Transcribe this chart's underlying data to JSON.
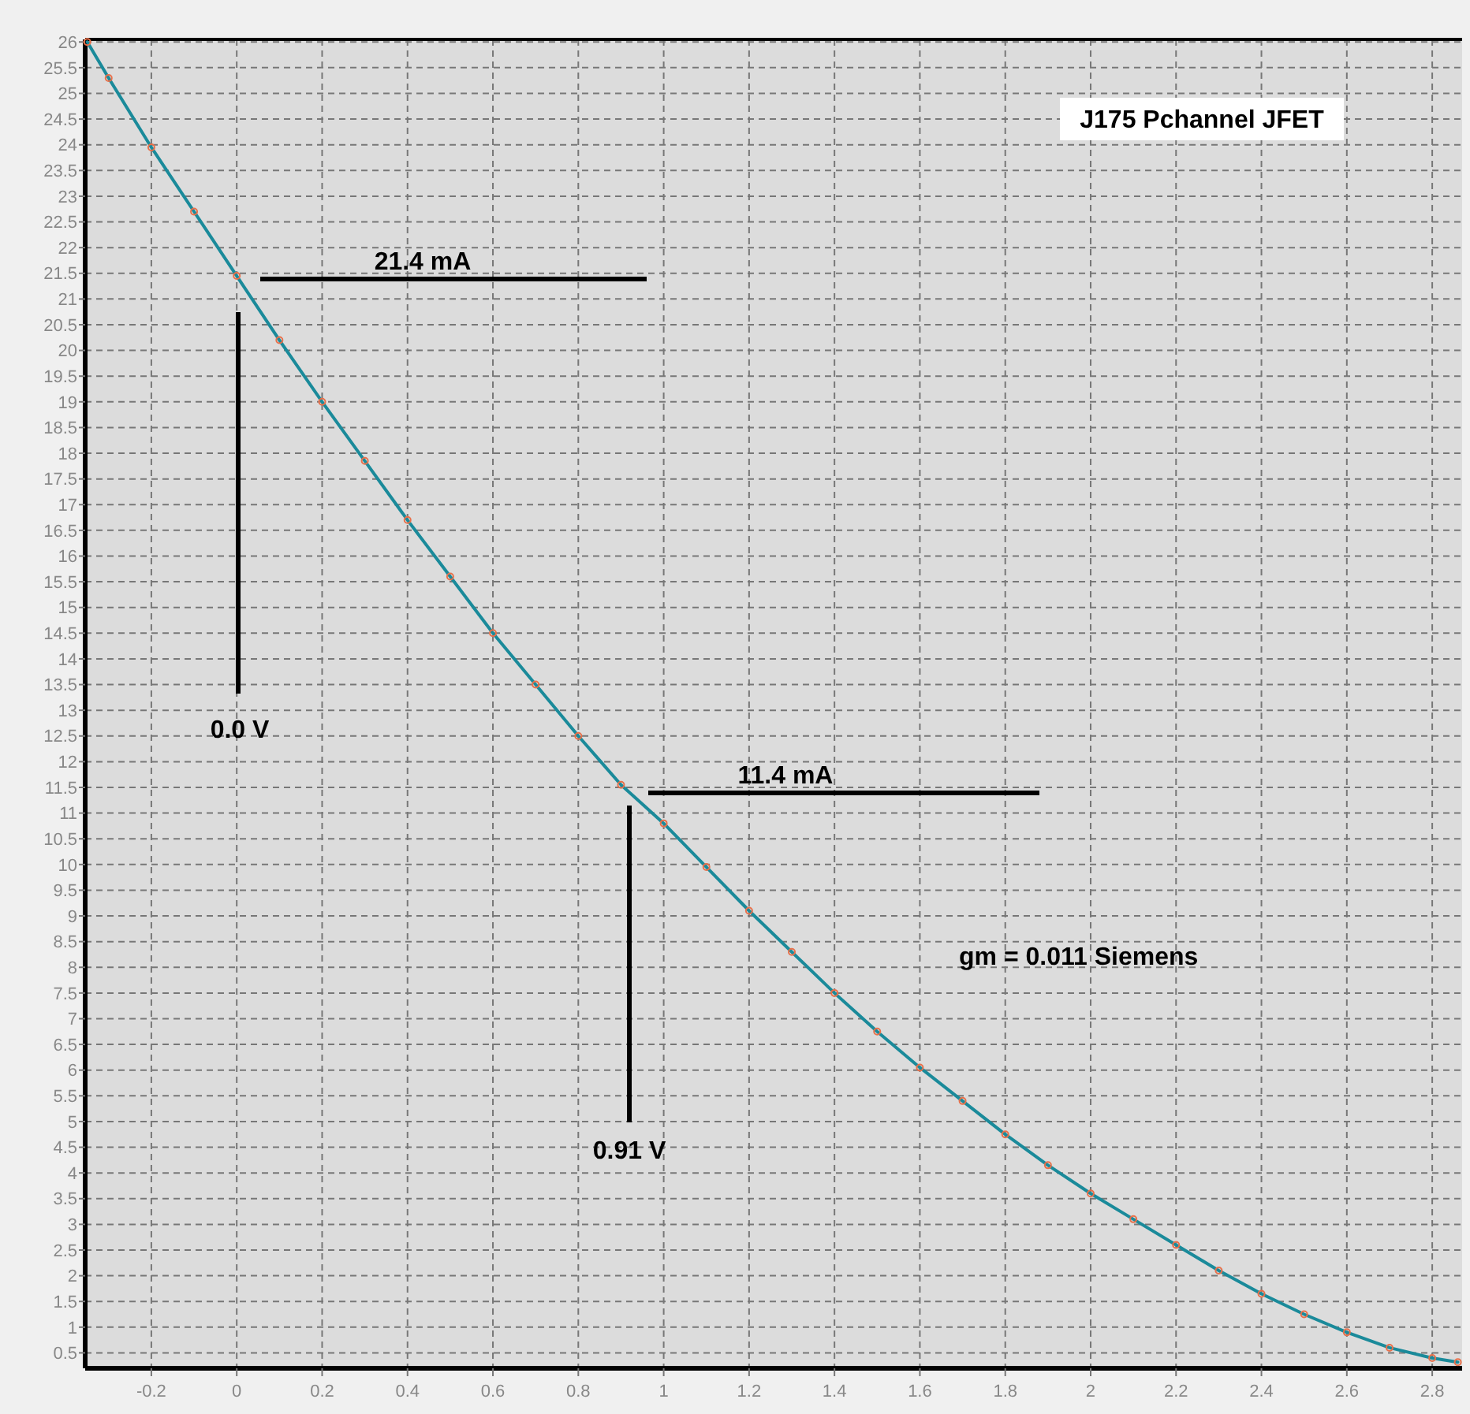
{
  "chart_data": {
    "type": "line",
    "title": "J175 Pchannel JFET",
    "x": [
      -0.35,
      -0.3,
      -0.2,
      -0.1,
      0,
      0.1,
      0.2,
      0.3,
      0.4,
      0.5,
      0.6,
      0.7,
      0.8,
      0.9,
      1.0,
      1.1,
      1.2,
      1.3,
      1.4,
      1.5,
      1.6,
      1.7,
      1.8,
      1.9,
      2.0,
      2.1,
      2.2,
      2.3,
      2.4,
      2.5,
      2.6,
      2.7,
      2.8,
      2.86
    ],
    "series": [
      {
        "color": "#1a8a9a",
        "values": [
          26.0,
          25.3,
          23.95,
          22.7,
          21.45,
          20.2,
          19.0,
          17.85,
          16.7,
          15.6,
          14.5,
          13.5,
          12.5,
          11.55,
          10.8,
          9.95,
          9.1,
          8.3,
          7.5,
          6.75,
          6.05,
          5.4,
          4.75,
          4.15,
          3.6,
          3.1,
          2.6,
          2.1,
          1.65,
          1.25,
          0.9,
          0.6,
          0.4,
          0.32
        ]
      }
    ],
    "marker": "circle",
    "line_style": "solid",
    "grid": true,
    "xlim": [
      -0.355,
      2.87
    ],
    "xticks": [
      -0.2,
      0,
      0.2,
      0.4,
      0.6,
      0.8,
      1,
      1.2,
      1.4,
      1.6,
      1.8,
      2,
      2.2,
      2.4,
      2.6,
      2.8
    ],
    "ylim": [
      0.2,
      26.05
    ],
    "yticks": [
      0.5,
      1,
      1.5,
      2,
      2.5,
      3,
      3.5,
      4,
      4.5,
      5,
      5.5,
      6,
      6.5,
      7,
      7.5,
      8,
      8.5,
      9,
      9.5,
      10,
      10.5,
      11,
      11.5,
      12,
      12.5,
      13,
      13.5,
      14,
      14.5,
      15,
      15.5,
      16,
      16.5,
      17,
      17.5,
      18,
      18.5,
      19,
      19.5,
      20,
      20.5,
      21,
      21.5,
      22,
      22.5,
      23,
      23.5,
      24,
      24.5,
      25,
      25.5,
      26
    ],
    "annotations": [
      "21.4 mA",
      "0.0 V",
      "11.4 mA",
      "0.91 V",
      "gm = 0.011 Siemens"
    ]
  }
}
